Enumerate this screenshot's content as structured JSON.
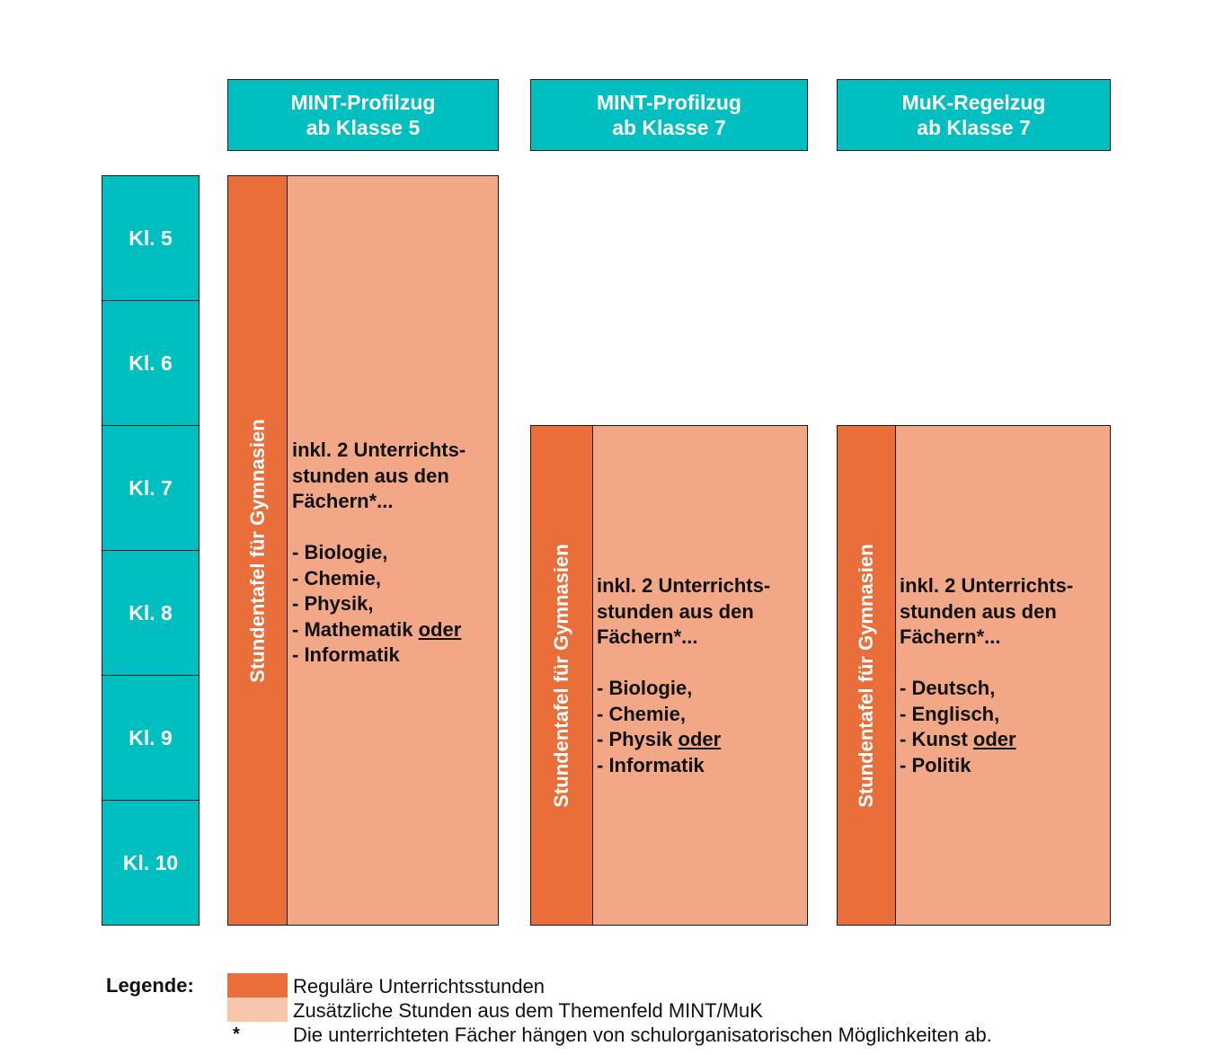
{
  "columns": [
    {
      "title_line1": "MINT-Profilzug",
      "title_line2": "ab Klasse 5",
      "side_label": "Stundentafel für Gymnasien",
      "intro": [
        "inkl. 2 Unterrichts-",
        "stunden aus den",
        "Fächern*..."
      ],
      "subjects": [
        "- Biologie,",
        "- Chemie,",
        "- Physik,",
        "- Mathematik",
        "- Informatik"
      ],
      "or_word": "oder"
    },
    {
      "title_line1": "MINT-Profilzug",
      "title_line2": "ab Klasse 7",
      "side_label": "Stundentafel für Gymnasien",
      "intro": [
        "inkl. 2 Unterrichts-",
        "stunden aus den",
        "Fächern*..."
      ],
      "subjects": [
        "- Biologie,",
        "- Chemie,",
        "- Physik",
        "- Informatik"
      ],
      "or_word": "oder"
    },
    {
      "title_line1": "MuK-Regelzug",
      "title_line2": "ab Klasse 7",
      "side_label": "Stundentafel für Gymnasien",
      "intro": [
        "inkl. 2 Unterrichts-",
        "stunden aus den",
        "Fächern*..."
      ],
      "subjects": [
        "- Deutsch,",
        "- Englisch,",
        "- Kunst",
        "- Politik"
      ],
      "or_word": "oder"
    }
  ],
  "grades": [
    "Kl. 5",
    "Kl. 6",
    "Kl. 7",
    "Kl. 8",
    "Kl. 9",
    "Kl. 10"
  ],
  "legend": {
    "title": "Legende:",
    "regular": "Reguläre Unterrichtsstunden",
    "additional": "Zusätzliche Stunden aus dem Themenfeld MINT/MuK",
    "asterisk": "*",
    "note": "Die unterrichteten Fächer hängen von schulorganisatorischen Möglichkeiten ab."
  },
  "colors": {
    "teal": "#00bfc0",
    "regular": "#ea6e3a",
    "additional": "#f2a886",
    "additional_legend": "#f7c6ad"
  }
}
